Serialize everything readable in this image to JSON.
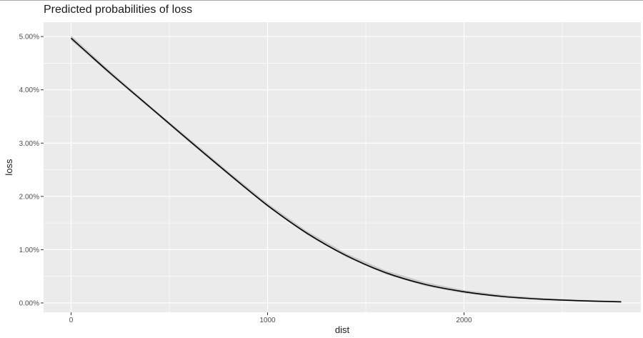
{
  "chart_data": {
    "type": "line",
    "title": "Predicted probabilities of loss",
    "xlabel": "dist",
    "ylabel": "loss",
    "xlim": [
      -140,
      2900
    ],
    "ylim": [
      -0.00175,
      0.0527
    ],
    "x_ticks": [
      0,
      1000,
      2000
    ],
    "x_tick_labels": [
      "0",
      "1000",
      "2000"
    ],
    "y_ticks": [
      0,
      0.01,
      0.02,
      0.03,
      0.04,
      0.05
    ],
    "y_tick_labels": [
      "0.00%",
      "1.00%",
      "2.00%",
      "3.00%",
      "4.00%",
      "5.00%"
    ],
    "grid": true,
    "legend": "none",
    "colors": {
      "panel": "#ebebeb",
      "grid_major": "#ffffff",
      "line": "#000000",
      "ribbon": "#bdbdbd"
    },
    "series": [
      {
        "x": [
          0,
          200,
          400,
          600,
          800,
          1000,
          1200,
          1400,
          1600,
          1800,
          2000,
          2200,
          2400,
          2600,
          2800
        ],
        "values": [
          0.0497,
          0.0431,
          0.0368,
          0.0305,
          0.0243,
          0.0183,
          0.0131,
          0.0089,
          0.0057,
          0.0035,
          0.0021,
          0.0012,
          0.0007,
          0.0004,
          0.0002
        ]
      }
    ],
    "ribbon": {
      "lower": [
        0.0493,
        0.0428,
        0.0365,
        0.0302,
        0.024,
        0.018,
        0.0128,
        0.0086,
        0.0054,
        0.0032,
        0.0018,
        0.001,
        0.0005,
        0.0003,
        0.0001
      ],
      "upper": [
        0.0502,
        0.0435,
        0.0371,
        0.0309,
        0.0247,
        0.0187,
        0.0135,
        0.0093,
        0.0061,
        0.0039,
        0.0024,
        0.0015,
        0.0009,
        0.0006,
        0.0004
      ]
    }
  }
}
